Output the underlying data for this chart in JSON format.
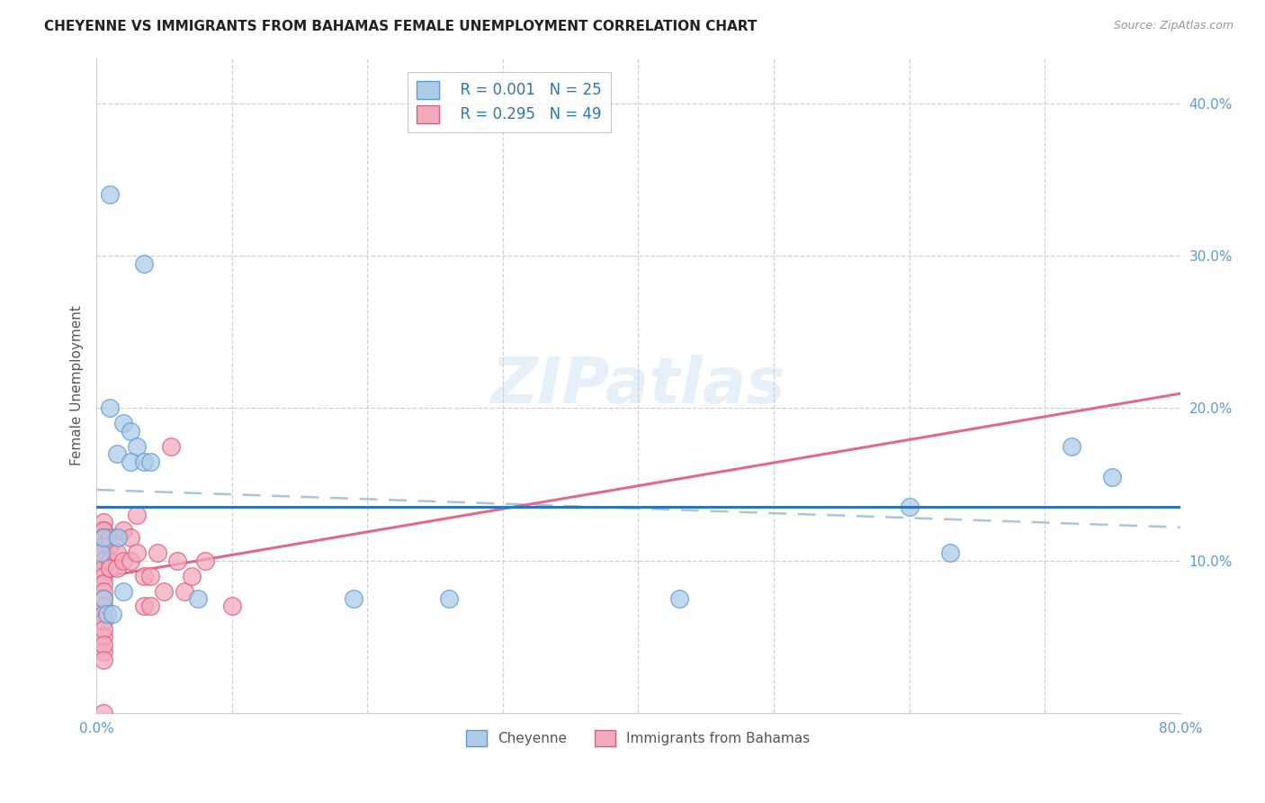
{
  "title": "CHEYENNE VS IMMIGRANTS FROM BAHAMAS FEMALE UNEMPLOYMENT CORRELATION CHART",
  "source": "Source: ZipAtlas.com",
  "ylabel": "Female Unemployment",
  "xlim": [
    0.0,
    0.8
  ],
  "ylim": [
    0.0,
    0.43
  ],
  "yticks": [
    0.1,
    0.2,
    0.3,
    0.4
  ],
  "ytick_labels": [
    "10.0%",
    "20.0%",
    "30.0%",
    "40.0%"
  ],
  "xticks": [
    0.0,
    0.1,
    0.2,
    0.3,
    0.4,
    0.5,
    0.6,
    0.7,
    0.8
  ],
  "xtick_labels": [
    "0.0%",
    "",
    "",
    "",
    "",
    "",
    "",
    "",
    "80.0%"
  ],
  "cheyenne_color": "#aecce8",
  "bahamas_color": "#f2aabe",
  "cheyenne_edge": "#5b9bd5",
  "bahamas_edge": "#e05a7a",
  "trend_cheyenne_color": "#8ab4d4",
  "trend_bahamas_color": "#e05a7a",
  "hline_color": "#2e75b6",
  "hline_y": 0.135,
  "legend_R_cheyenne": "R = 0.001",
  "legend_N_cheyenne": "N = 25",
  "legend_R_bahamas": "R = 0.295",
  "legend_N_bahamas": "N = 49",
  "cheyenne_x": [
    0.01,
    0.035,
    0.01,
    0.02,
    0.025,
    0.03,
    0.015,
    0.025,
    0.035,
    0.04,
    0.19,
    0.26,
    0.43,
    0.6,
    0.63,
    0.72,
    0.003,
    0.005,
    0.005,
    0.008,
    0.012,
    0.016,
    0.02,
    0.075,
    0.75
  ],
  "cheyenne_y": [
    0.34,
    0.295,
    0.2,
    0.19,
    0.185,
    0.175,
    0.17,
    0.165,
    0.165,
    0.165,
    0.075,
    0.075,
    0.075,
    0.135,
    0.105,
    0.175,
    0.105,
    0.115,
    0.075,
    0.065,
    0.065,
    0.115,
    0.08,
    0.075,
    0.155
  ],
  "bahamas_x": [
    0.005,
    0.005,
    0.005,
    0.005,
    0.005,
    0.005,
    0.005,
    0.005,
    0.005,
    0.005,
    0.005,
    0.005,
    0.005,
    0.005,
    0.005,
    0.005,
    0.005,
    0.005,
    0.005,
    0.005,
    0.01,
    0.01,
    0.01,
    0.01,
    0.015,
    0.015,
    0.015,
    0.02,
    0.02,
    0.025,
    0.025,
    0.03,
    0.03,
    0.035,
    0.035,
    0.04,
    0.04,
    0.045,
    0.05,
    0.055,
    0.06,
    0.065,
    0.07,
    0.08,
    0.1,
    0.005,
    0.005,
    0.005,
    0.005
  ],
  "bahamas_y": [
    0.125,
    0.12,
    0.12,
    0.115,
    0.115,
    0.115,
    0.11,
    0.105,
    0.1,
    0.1,
    0.095,
    0.09,
    0.085,
    0.08,
    0.075,
    0.07,
    0.065,
    0.06,
    0.05,
    0.04,
    0.115,
    0.11,
    0.1,
    0.095,
    0.115,
    0.105,
    0.095,
    0.12,
    0.1,
    0.115,
    0.1,
    0.13,
    0.105,
    0.09,
    0.07,
    0.09,
    0.07,
    0.105,
    0.08,
    0.175,
    0.1,
    0.08,
    0.09,
    0.1,
    0.07,
    0.055,
    0.045,
    0.035,
    0.0
  ]
}
